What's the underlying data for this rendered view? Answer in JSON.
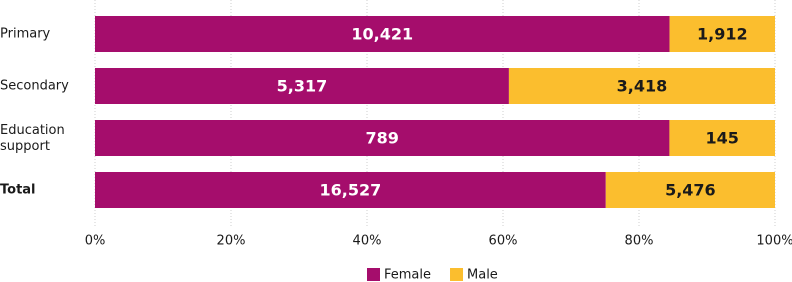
{
  "chart_data": {
    "type": "bar",
    "orientation": "horizontal",
    "stacking": "percent",
    "categories": [
      "Primary",
      "Secondary",
      "Education support",
      "Total"
    ],
    "bold_categories": [
      "Total"
    ],
    "series": [
      {
        "name": "Female",
        "color": "#a50d6c",
        "label_color": "#ffffff",
        "values": [
          10421,
          5317,
          789,
          16527
        ],
        "value_labels": [
          "10,421",
          "5,317",
          "789",
          "16,527"
        ]
      },
      {
        "name": "Male",
        "color": "#fbbe2e",
        "label_color": "#1a1a1a",
        "values": [
          1912,
          3418,
          145,
          5476
        ],
        "value_labels": [
          "1,912",
          "3,418",
          "145",
          "5,476"
        ]
      }
    ],
    "xlim": [
      0,
      100
    ],
    "xticks": [
      {
        "value": 0,
        "label": "0%"
      },
      {
        "value": 20,
        "label": "20%"
      },
      {
        "value": 40,
        "label": "40%"
      },
      {
        "value": 60,
        "label": "60%"
      },
      {
        "value": 80,
        "label": "80%"
      },
      {
        "value": 100,
        "label": "100%"
      }
    ],
    "grid": true,
    "legend": "bottom"
  }
}
